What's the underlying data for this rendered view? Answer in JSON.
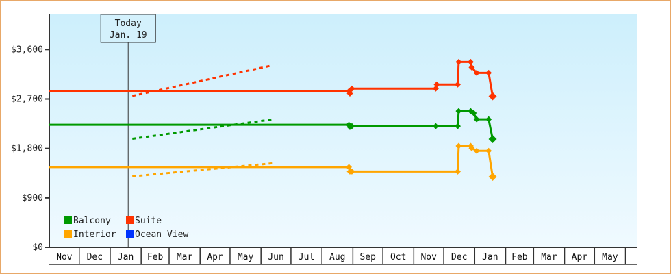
{
  "chart_data": {
    "type": "line",
    "title": "",
    "xlabel": "",
    "ylabel": "",
    "ylim": [
      0,
      4240
    ],
    "y_ticks": [
      {
        "value": 0,
        "label": "$0"
      },
      {
        "value": 900,
        "label": "$900"
      },
      {
        "value": 1800,
        "label": "$1,800"
      },
      {
        "value": 2700,
        "label": "$2,700"
      },
      {
        "value": 3600,
        "label": "$3,600"
      }
    ],
    "x_ticks": [
      "Nov",
      "Dec",
      "Jan",
      "Feb",
      "Mar",
      "Apr",
      "May",
      "Jun",
      "Jul",
      "Aug",
      "Sep",
      "Oct",
      "Nov",
      "Dec",
      "Jan",
      "Feb",
      "Mar",
      "Apr",
      "May"
    ],
    "x_range": [
      "Nov 1",
      "Jun 13"
    ],
    "grid": false,
    "background": "light-blue-gradient",
    "today_marker": {
      "line1": "Today",
      "line2": "Jan. 19",
      "date": "Jan 19"
    },
    "legend_position": "bottom-left",
    "series": [
      {
        "name": "Balcony",
        "color": "#009900",
        "points": [
          [
            "Nov 1",
            2230
          ],
          [
            "Aug 28",
            2230
          ],
          [
            "Aug 29",
            2190
          ],
          [
            "Aug 31",
            2205
          ],
          [
            "Nov 23",
            2205
          ],
          [
            "Dec 15",
            2205
          ],
          [
            "Dec 16",
            2480
          ],
          [
            "Dec 28",
            2480
          ],
          [
            "Dec 31",
            2445
          ],
          [
            "Jan 3",
            2330
          ],
          [
            "Jan 15",
            2330
          ],
          [
            "Jan 19",
            1970
          ]
        ],
        "projection": [
          [
            "Jan 19",
            1970
          ],
          [
            "Jun 13",
            2330
          ]
        ]
      },
      {
        "name": "Suite",
        "color": "#ff3300",
        "points": [
          [
            "Nov 1",
            2840
          ],
          [
            "Aug 28",
            2840
          ],
          [
            "Aug 29",
            2800
          ],
          [
            "Aug 31",
            2890
          ],
          [
            "Nov 23",
            2890
          ],
          [
            "Nov 24",
            2965
          ],
          [
            "Dec 15",
            2965
          ],
          [
            "Dec 16",
            3375
          ],
          [
            "Dec 28",
            3375
          ],
          [
            "Dec 29",
            3275
          ],
          [
            "Jan 3",
            3175
          ],
          [
            "Jan 15",
            3175
          ],
          [
            "Jan 19",
            2750
          ]
        ],
        "projection": [
          [
            "Jan 19",
            2750
          ],
          [
            "Jun 13",
            3315
          ]
        ]
      },
      {
        "name": "Interior",
        "color": "#ffa500",
        "points": [
          [
            "Nov 1",
            1460
          ],
          [
            "Aug 28",
            1460
          ],
          [
            "Aug 29",
            1380
          ],
          [
            "Aug 31",
            1380
          ],
          [
            "Dec 15",
            1380
          ],
          [
            "Dec 16",
            1845
          ],
          [
            "Dec 28",
            1845
          ],
          [
            "Dec 29",
            1805
          ],
          [
            "Jan 3",
            1755
          ],
          [
            "Jan 15",
            1755
          ],
          [
            "Jan 19",
            1285
          ]
        ],
        "projection": [
          [
            "Jan 19",
            1285
          ],
          [
            "Jun 13",
            1530
          ]
        ]
      },
      {
        "name": "Ocean View",
        "color": "#0033ff",
        "points": [],
        "projection": []
      }
    ]
  }
}
